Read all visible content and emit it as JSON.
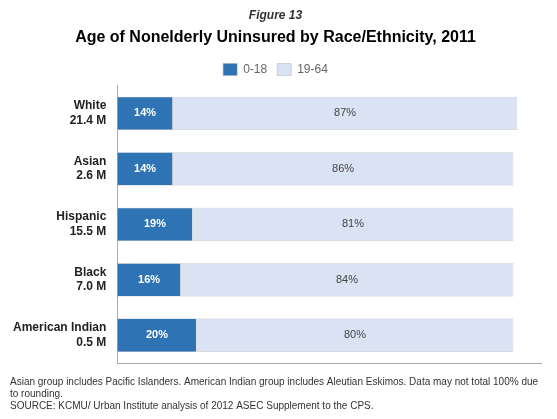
{
  "chart_data": {
    "type": "bar",
    "orientation": "horizontal",
    "stacked": true,
    "subtitle": "Figure 13",
    "title": "Age of Nonelderly Uninsured by Race/Ethnicity, 2011",
    "categories": [
      "White",
      "Asian",
      "Hispanic",
      "Black",
      "American Indian"
    ],
    "subtitles": [
      "21.4 M",
      "2.6 M",
      "15.5 M",
      "7.0 M",
      "0.5 M"
    ],
    "series": [
      {
        "name": "0-18",
        "color": "#2E74B5",
        "values": [
          14,
          14,
          19,
          16,
          20
        ],
        "value_labels": [
          "14%",
          "14%",
          "19%",
          "16%",
          "20%"
        ]
      },
      {
        "name": "19-64",
        "color": "#DAE3F3",
        "values": [
          87,
          86,
          81,
          84,
          80
        ],
        "value_labels": [
          "87%",
          "86%",
          "81%",
          "84%",
          "80%"
        ]
      }
    ],
    "xlim": [
      0,
      107
    ],
    "grid": false,
    "legend": "top",
    "data_labels": true,
    "tick_labels": "y",
    "annotations": [
      "Asian group includes Pacific Islanders. American Indian group includes Aleutian Eskimos. Data may not total 100% due to rounding.",
      "SOURCE: KCMU/ Urban Institute analysis of 2012 ASEC Supplement to the CPS."
    ]
  }
}
